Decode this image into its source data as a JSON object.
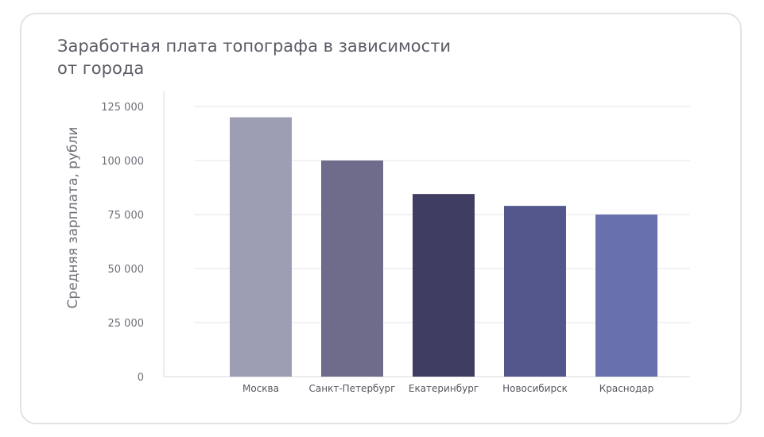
{
  "chart_data": {
    "type": "bar",
    "title": "Заработная плата топографа в зависимости от города",
    "title_lines": [
      "Заработная плата топографа в зависимости",
      "от города"
    ],
    "xlabel": "",
    "ylabel": "Средняя зарплата, рубли",
    "categories": [
      "Москва",
      "Санкт-Петербург",
      "Екатеринбург",
      "Новосибирск",
      "Краснодар"
    ],
    "values": [
      120000,
      100000,
      84500,
      79000,
      75000
    ],
    "colors": [
      "#9d9eb4",
      "#6f6c8b",
      "#3f3e62",
      "#53578c",
      "#6870ae"
    ],
    "ylim": [
      0,
      125000
    ],
    "yticks": [
      0,
      25000,
      50000,
      75000,
      100000,
      125000
    ],
    "ytick_labels": [
      "0",
      "25 000",
      "50 000",
      "75 000",
      "100 000",
      "125 000"
    ],
    "grid": true,
    "legend": "none"
  }
}
